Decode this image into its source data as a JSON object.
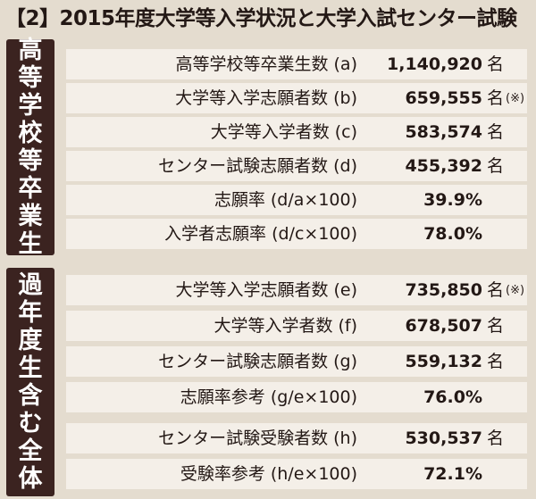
{
  "title": "【2】2015年度大学等入学状況と大学入試センター試験",
  "section1": {
    "side_label": [
      "高",
      "等",
      "学",
      "校",
      "等",
      "卒",
      "業",
      "生"
    ],
    "rows": [
      {
        "label": "高等学校等卒業生数 (a)",
        "value": "1,140,920",
        "unit": "名",
        "note": ""
      },
      {
        "label": "大学等入学志願者数 (b)",
        "value": "659,555",
        "unit": "名",
        "note": "(※)"
      },
      {
        "label": "大学等入学者数 (c)",
        "value": "583,574",
        "unit": "名",
        "note": ""
      },
      {
        "label": "センター試験志願者数 (d)",
        "value": "455,392",
        "unit": "名",
        "note": ""
      },
      {
        "label": "志願率 (d/a×100)",
        "value": "39.9%",
        "unit": "",
        "note": ""
      },
      {
        "label": "入学者志願率 (d/c×100)",
        "value": "78.0%",
        "unit": "",
        "note": ""
      }
    ]
  },
  "section2": {
    "side_label": [
      "過",
      "年",
      "度",
      "生",
      "含",
      "む",
      "全",
      "体"
    ],
    "rows": [
      {
        "label": "大学等入学志願者数 (e)",
        "value": "735,850",
        "unit": "名",
        "note": "(※)"
      },
      {
        "label": "大学等入学者数 (f)",
        "value": "678,507",
        "unit": "名",
        "note": ""
      },
      {
        "label": "センター試験志願者数 (g)",
        "value": "559,132",
        "unit": "名",
        "note": ""
      },
      {
        "label": "志願率参考 (g/e×100)",
        "value": "76.0%",
        "unit": "",
        "note": ""
      },
      {
        "label": "センター試験受験者数 (h)",
        "value": "530,537",
        "unit": "名",
        "note": ""
      },
      {
        "label": "受験率参考 (h/e×100)",
        "value": "72.1%",
        "unit": "",
        "note": ""
      }
    ]
  }
}
